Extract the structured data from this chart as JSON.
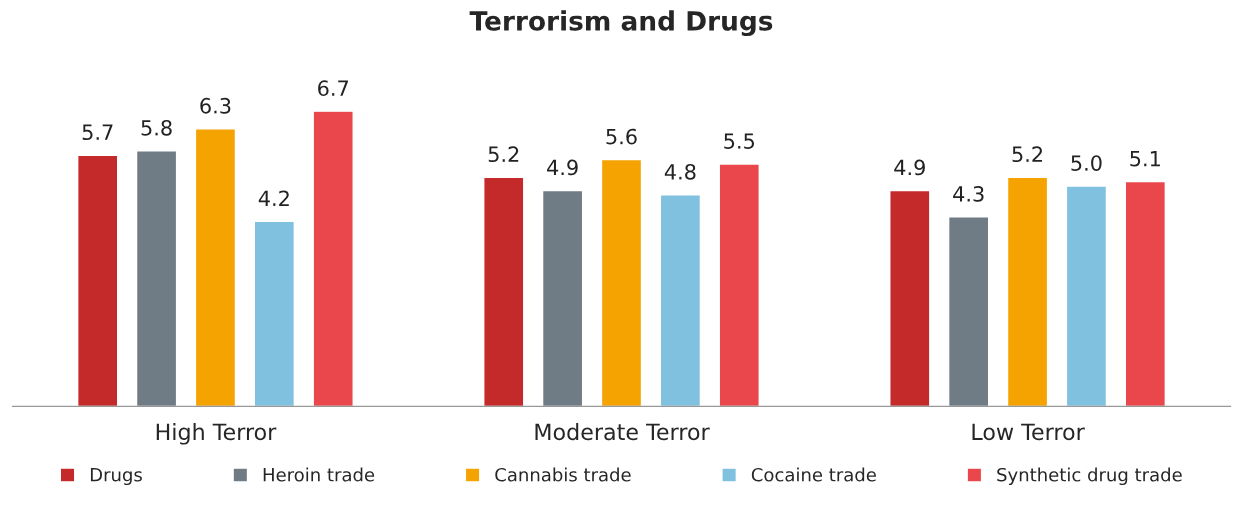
{
  "chart_data": {
    "type": "bar",
    "title": "Terrorism and Drugs",
    "categories": [
      "High Terror",
      "Moderate Terror",
      "Low Terror"
    ],
    "series": [
      {
        "name": "Drugs",
        "color": "#c42a2a",
        "values": [
          5.7,
          5.2,
          4.9
        ],
        "value_labels": [
          "5.7",
          "5.2",
          "4.9"
        ]
      },
      {
        "name": "Heroin trade",
        "color": "#6f7c86",
        "values": [
          5.8,
          4.9,
          4.3
        ],
        "value_labels": [
          "5.8",
          "4.9",
          "4.3"
        ]
      },
      {
        "name": "Cannabis trade",
        "color": "#f5a300",
        "values": [
          6.3,
          5.6,
          5.2
        ],
        "value_labels": [
          "6.3",
          "5.6",
          "5.2"
        ]
      },
      {
        "name": "Cocaine trade",
        "color": "#80c1e0",
        "values": [
          4.2,
          4.8,
          5.0
        ],
        "value_labels": [
          "4.2",
          "4.8",
          "5.0"
        ]
      },
      {
        "name": "Synthetic drug trade",
        "color": "#e9474b",
        "values": [
          6.7,
          5.5,
          5.1
        ],
        "value_labels": [
          "6.7",
          "5.5",
          "5.1"
        ]
      }
    ],
    "legend": "bottom",
    "grid": false
  }
}
